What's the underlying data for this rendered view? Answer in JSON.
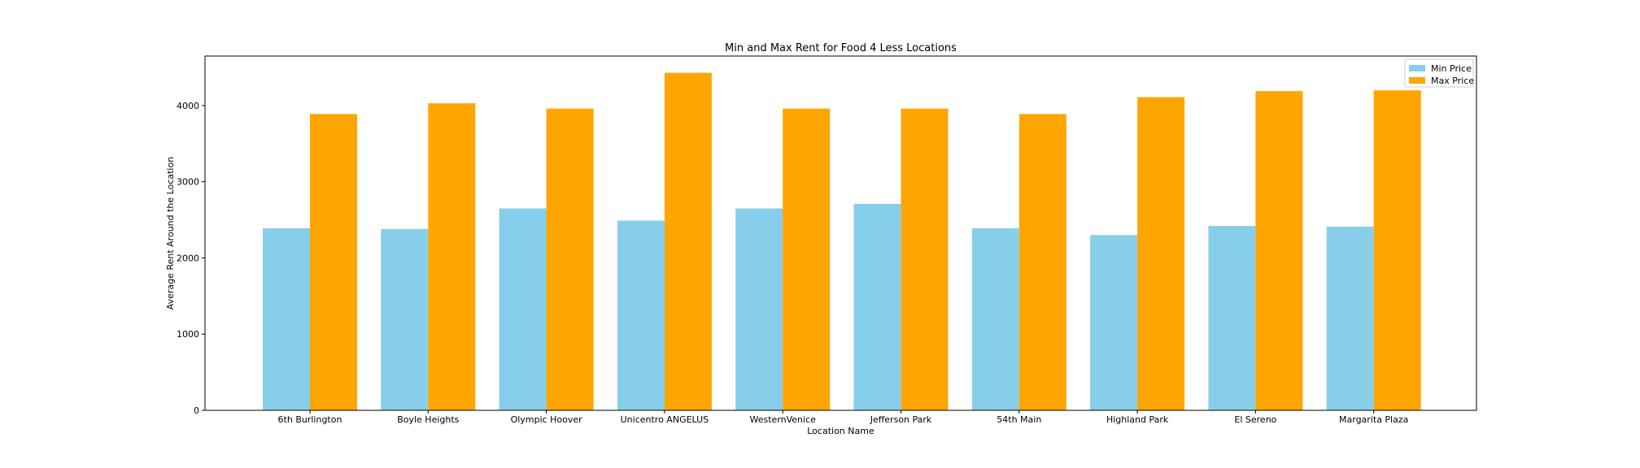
{
  "chart_data": {
    "type": "bar",
    "title": "Min and Max Rent for Food 4 Less Locations",
    "xlabel": "Location Name",
    "ylabel": "Average Rent Around the Location",
    "ylim": [
      0,
      4650
    ],
    "yticks": [
      0,
      1000,
      2000,
      3000,
      4000
    ],
    "grid": false,
    "legend_position": "top-right",
    "categories": [
      "6th Burlington",
      "Boyle Heights",
      "Olympic Hoover",
      "Unicentro ANGELUS",
      "WesternVenice",
      "Jefferson Park",
      "54th Main",
      "Highland Park",
      "El Sereno",
      "Margarita Plaza"
    ],
    "series": [
      {
        "name": "Min Price",
        "color": "#87ceeb",
        "values": [
          2390,
          2380,
          2650,
          2490,
          2650,
          2710,
          2390,
          2300,
          2420,
          2410
        ]
      },
      {
        "name": "Max Price",
        "color": "#ffa500",
        "values": [
          3890,
          4030,
          3960,
          4430,
          3960,
          3960,
          3890,
          4110,
          4190,
          4200
        ]
      }
    ]
  }
}
